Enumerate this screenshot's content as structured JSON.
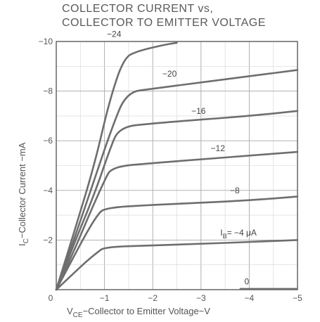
{
  "chart_data": {
    "type": "line",
    "title_line1": "COLLECTOR CURRENT vs,",
    "title_line2": "COLLECTOR TO EMITTER VOLTAGE",
    "xlabel_main": "V",
    "xlabel_sub": "CE",
    "xlabel_rest": "−Collector to Emitter Voltage−V",
    "ylabel_main": "I",
    "ylabel_sub": "C",
    "ylabel_rest": "−Collector Current −mA",
    "xlim": [
      0,
      -5
    ],
    "ylim": [
      0,
      -10
    ],
    "x_ticks": [
      0,
      -1,
      -2,
      -3,
      -4,
      -5
    ],
    "x_tick_labels": [
      "0",
      "−1",
      "−2",
      "−3",
      "−4",
      "−5"
    ],
    "y_ticks": [
      -2,
      -4,
      -6,
      -8,
      -10
    ],
    "y_tick_labels": [
      "−2",
      "−4",
      "−6",
      "−8",
      "−10"
    ],
    "grid": true,
    "series": [
      {
        "label": "−4",
        "label_prefix": "I",
        "label_sub": "B",
        "label_suffix": "= −4 μA",
        "x": [
          0,
          -0.3,
          -0.6,
          -0.85,
          -1.0,
          -2.0,
          -3.0,
          -4.0,
          -5.0
        ],
        "y": [
          0,
          -0.55,
          -1.1,
          -1.5,
          -1.72,
          -1.78,
          -1.85,
          -1.92,
          -2.0
        ]
      },
      {
        "label": "−8",
        "x": [
          0,
          -0.3,
          -0.6,
          -0.85,
          -1.0,
          -2.0,
          -3.0,
          -4.0,
          -5.0
        ],
        "y": [
          0,
          -1.1,
          -2.2,
          -3.0,
          -3.3,
          -3.42,
          -3.5,
          -3.6,
          -3.75
        ]
      },
      {
        "label": "−12",
        "x": [
          0,
          -0.4,
          -0.7,
          -1.0,
          -1.15,
          -2.0,
          -3.0,
          -4.0,
          -5.0
        ],
        "y": [
          0,
          -1.7,
          -3.1,
          -4.4,
          -4.95,
          -5.1,
          -5.25,
          -5.4,
          -5.55
        ]
      },
      {
        "label": "−16",
        "x": [
          0,
          -0.4,
          -0.8,
          -1.1,
          -1.3,
          -2.0,
          -3.0,
          -4.0,
          -5.0
        ],
        "y": [
          0,
          -2.0,
          -3.9,
          -5.6,
          -6.55,
          -6.7,
          -6.85,
          -7.0,
          -7.2
        ]
      },
      {
        "label": "−20",
        "x": [
          0,
          -0.4,
          -0.8,
          -1.15,
          -1.45,
          -2.0,
          -3.0,
          -4.0,
          -5.0
        ],
        "y": [
          0,
          -2.2,
          -4.5,
          -6.5,
          -7.95,
          -8.1,
          -8.35,
          -8.6,
          -8.85
        ]
      },
      {
        "label": "−24",
        "x": [
          0,
          -0.4,
          -0.8,
          -1.1,
          -1.4,
          -1.7,
          -2.2,
          -2.5
        ],
        "y": [
          0,
          -2.5,
          -5.1,
          -7.6,
          -9.35,
          -9.62,
          -9.85,
          -9.95
        ]
      }
    ],
    "extra_labels": [
      "0"
    ]
  }
}
